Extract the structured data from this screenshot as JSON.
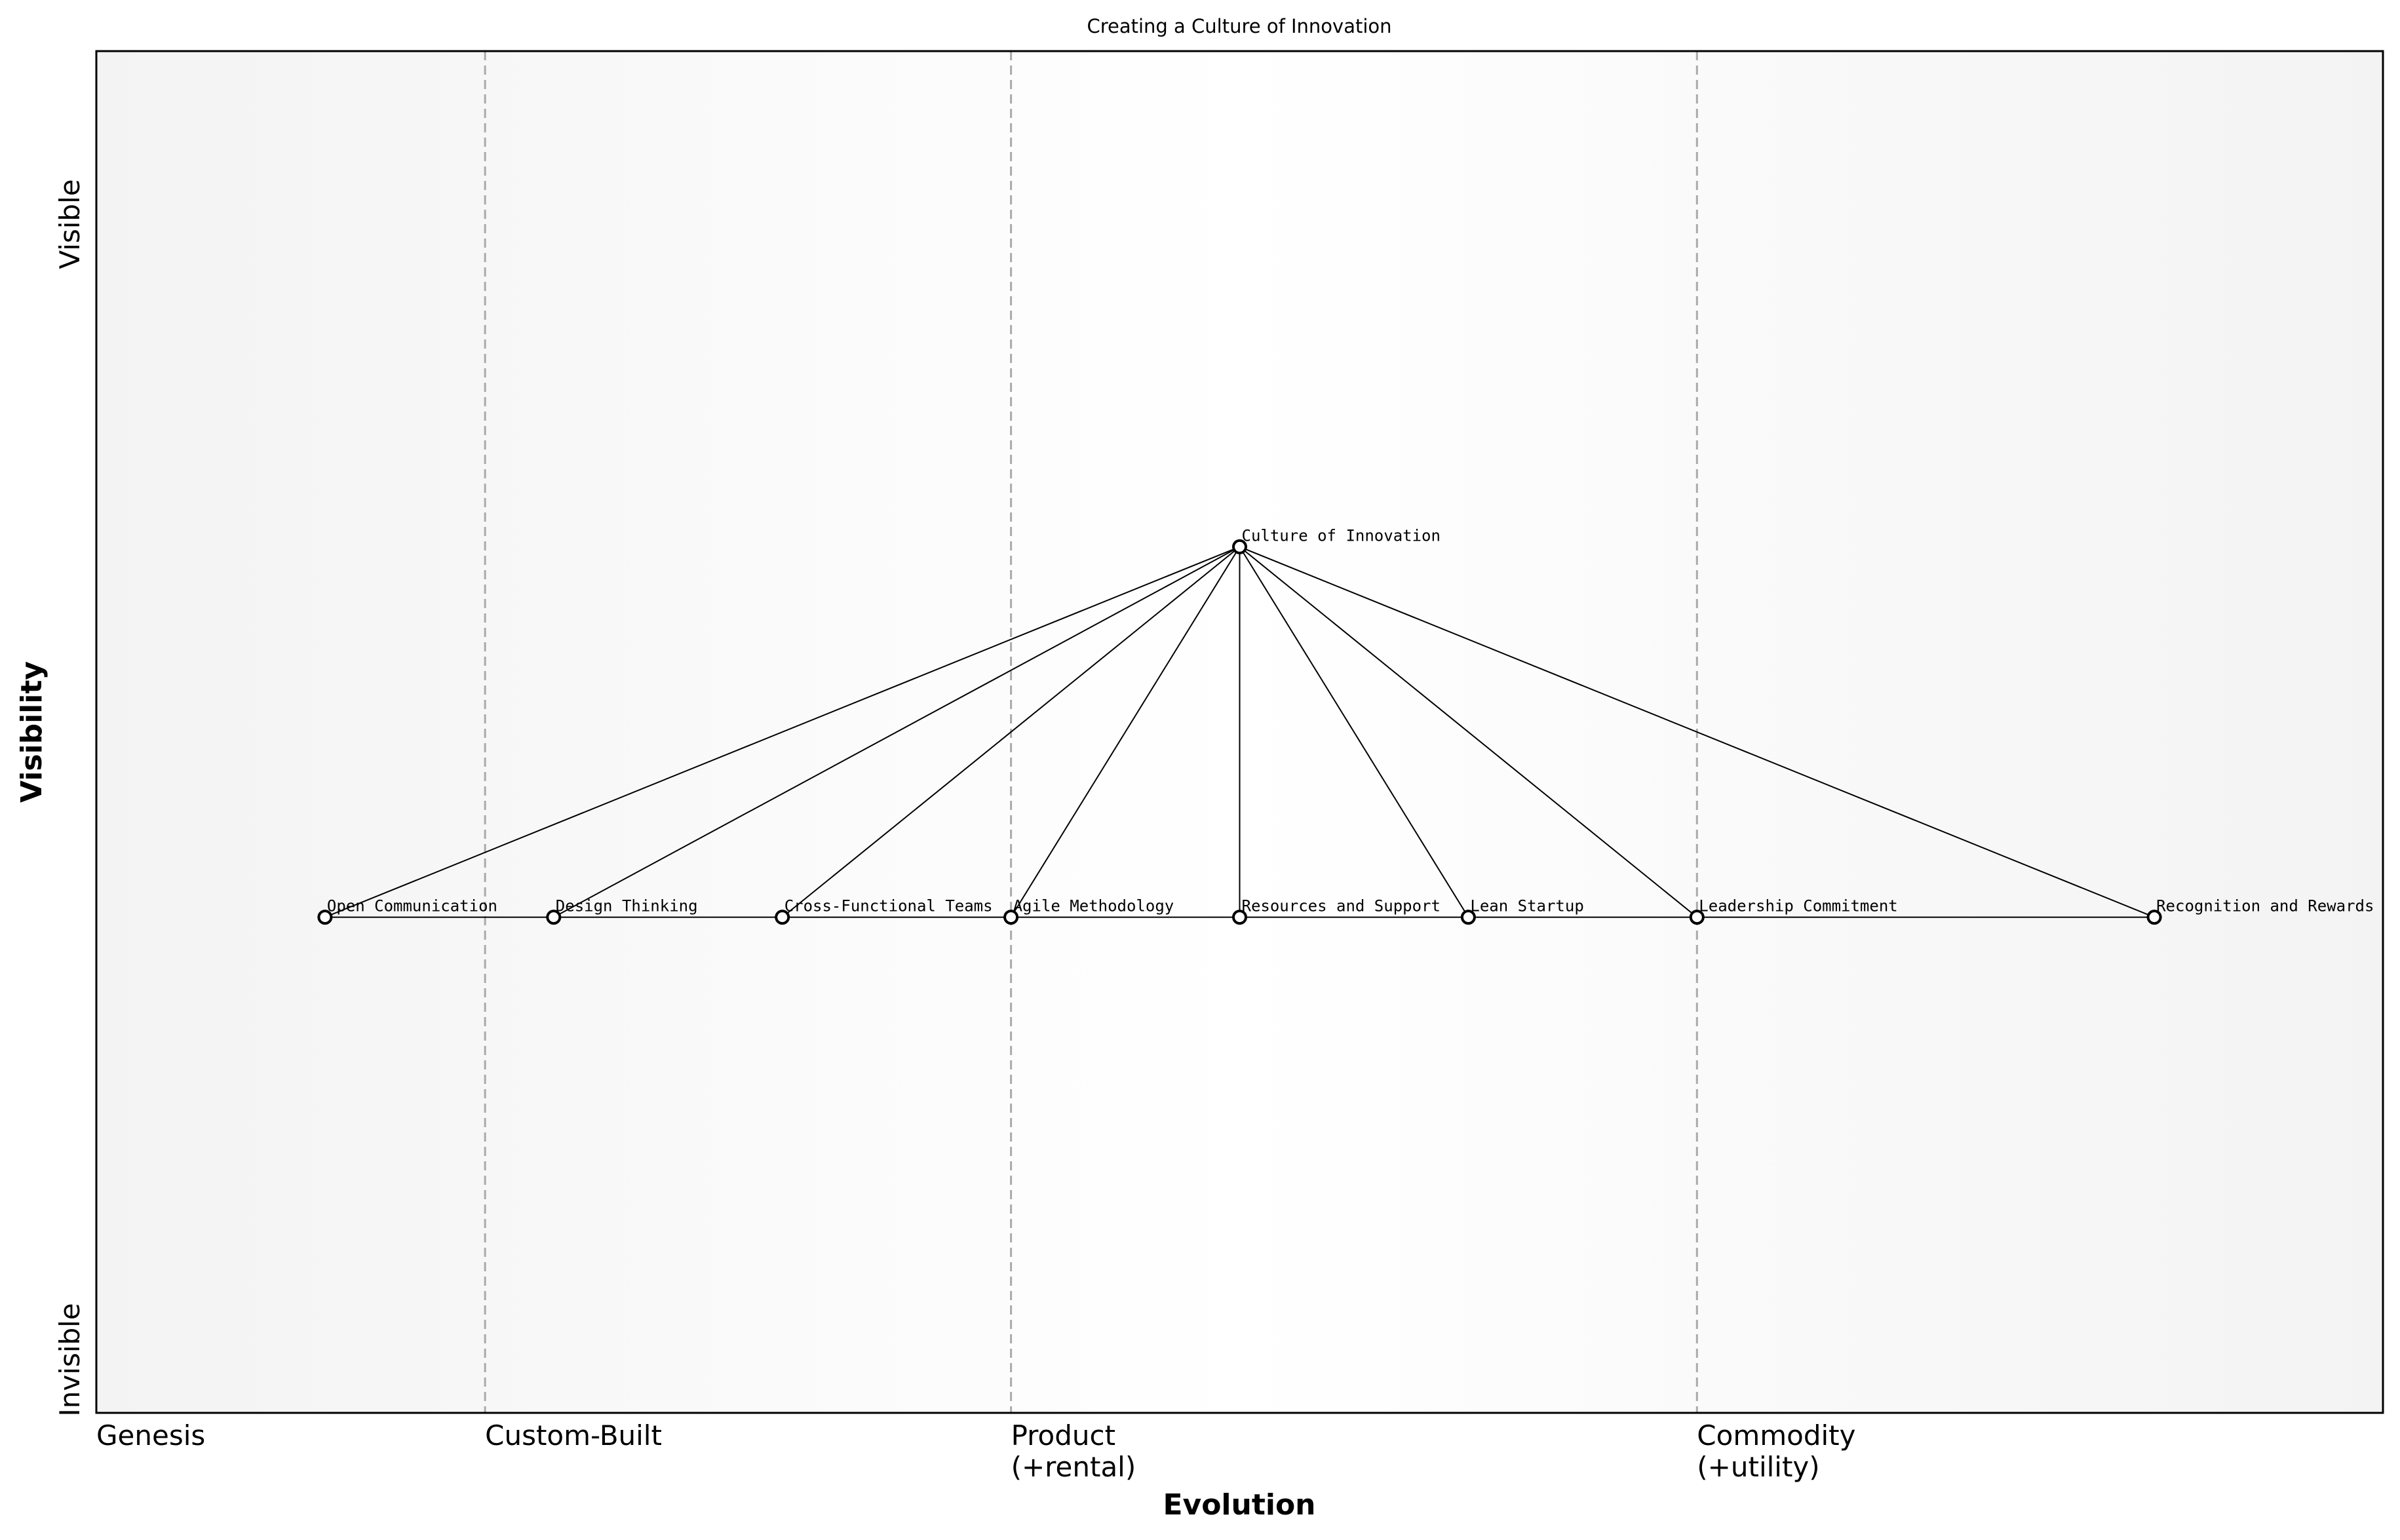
{
  "title": "Creating a Culture of Innovation",
  "axes": {
    "x_label": "Evolution",
    "y_label": "Visibility",
    "y_top": "Visible",
    "y_bottom": "Invisible",
    "stages": [
      {
        "line1": "Genesis",
        "line2": "",
        "x": 0.0
      },
      {
        "line1": "Custom-Built",
        "line2": "",
        "x": 0.17
      },
      {
        "line1": "Product",
        "line2": "(+rental)",
        "x": 0.4
      },
      {
        "line1": "Commodity",
        "line2": "(+utility)",
        "x": 0.7
      }
    ]
  },
  "components": [
    {
      "id": "culture",
      "name": "Culture of Innovation",
      "evolution": 0.5,
      "visibility": 0.636
    },
    {
      "id": "open",
      "name": "Open Communication",
      "evolution": 0.1,
      "visibility": 0.364
    },
    {
      "id": "design",
      "name": "Design Thinking",
      "evolution": 0.2,
      "visibility": 0.364
    },
    {
      "id": "cft",
      "name": "Cross-Functional Teams",
      "evolution": 0.3,
      "visibility": 0.364
    },
    {
      "id": "agile",
      "name": "Agile Methodology",
      "evolution": 0.4,
      "visibility": 0.364
    },
    {
      "id": "resources",
      "name": "Resources and Support",
      "evolution": 0.5,
      "visibility": 0.364
    },
    {
      "id": "lean",
      "name": "Lean Startup",
      "evolution": 0.6,
      "visibility": 0.364
    },
    {
      "id": "leadership",
      "name": "Leadership Commitment",
      "evolution": 0.7,
      "visibility": 0.364
    },
    {
      "id": "recognition",
      "name": "Recognition and Rewards",
      "evolution": 0.9,
      "visibility": 0.364
    }
  ],
  "links": [
    [
      "culture",
      "open"
    ],
    [
      "culture",
      "design"
    ],
    [
      "culture",
      "cft"
    ],
    [
      "culture",
      "agile"
    ],
    [
      "culture",
      "resources"
    ],
    [
      "culture",
      "lean"
    ],
    [
      "culture",
      "leadership"
    ],
    [
      "culture",
      "recognition"
    ],
    [
      "open",
      "design"
    ],
    [
      "design",
      "cft"
    ],
    [
      "cft",
      "agile"
    ],
    [
      "agile",
      "resources"
    ],
    [
      "resources",
      "lean"
    ],
    [
      "lean",
      "leadership"
    ],
    [
      "leadership",
      "recognition"
    ]
  ]
}
